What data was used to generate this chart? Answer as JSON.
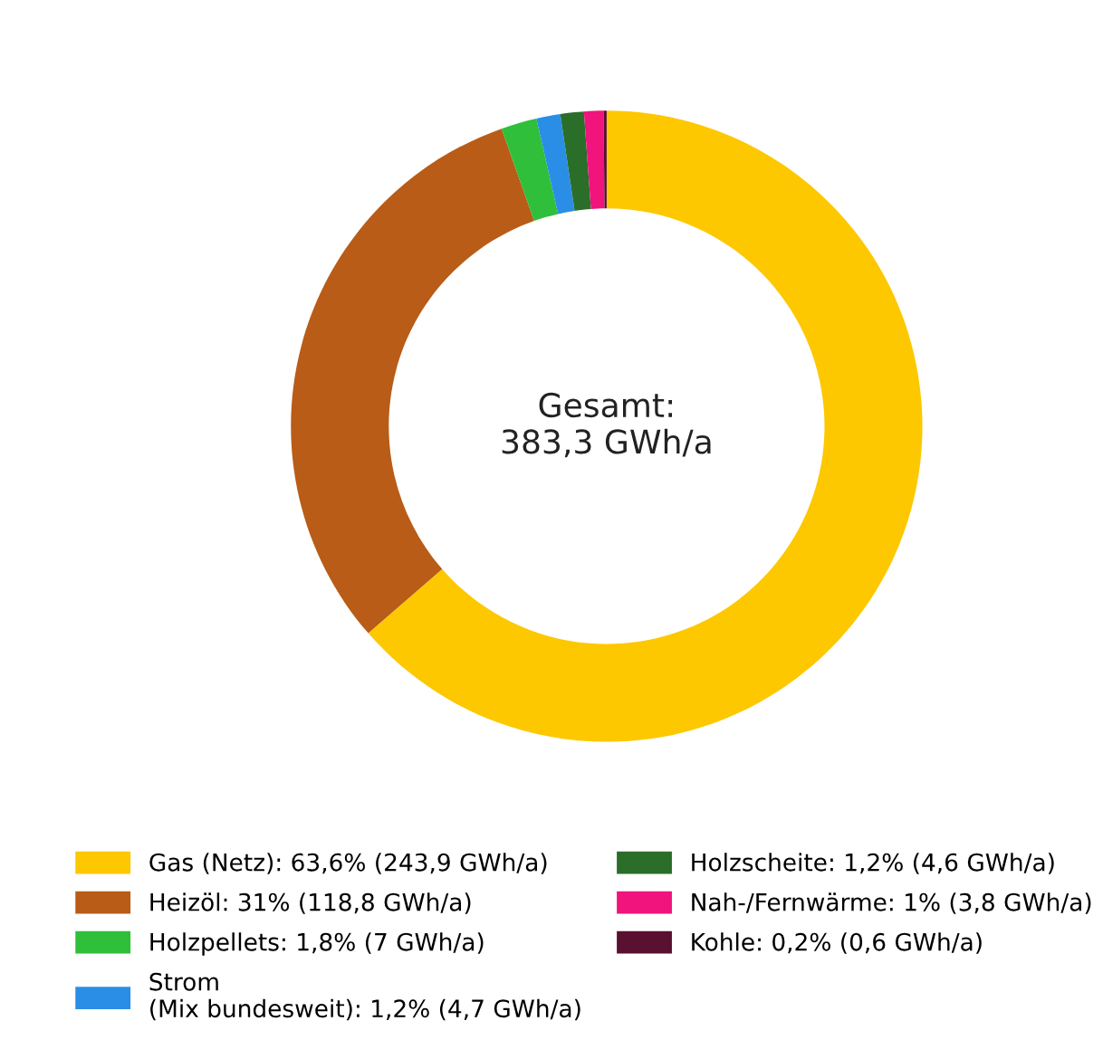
{
  "chart_data": {
    "type": "donut",
    "categories": [
      "Gas (Netz): 63,6% (243,9 GWh/a)",
      "Heizöl: 31% (118,8 GWh/a)",
      "Holzpellets: 1,8% (7 GWh/a)",
      "Strom\n(Mix bundesweit): 1,2% (4,7 GWh/a)",
      "Holzscheite: 1,2% (4,6 GWh/a)",
      "Nah-/Fernwärme: 1% (3,8 GWh/a)",
      "Kohle: 0,2% (0,6 GWh/a)"
    ],
    "values": [
      243.9,
      118.8,
      7,
      4.7,
      4.6,
      3.8,
      0.6
    ],
    "colors": [
      "#fdc800",
      "#b85c17",
      "#2fbf3a",
      "#2a8ee6",
      "#2a6e2a",
      "#f0147c",
      "#5a1030"
    ],
    "annotations": [
      "Gesamt:\n383,3 GWh/a"
    ],
    "legend": "bottom"
  }
}
